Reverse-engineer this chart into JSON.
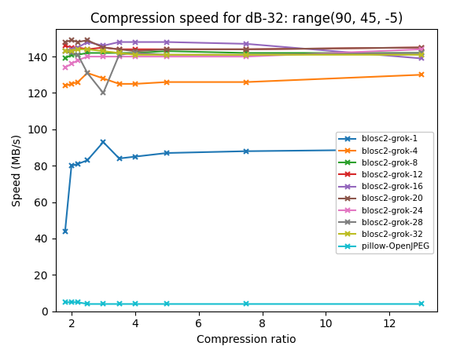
{
  "title": "Compression speed for dB-32: range(90, 45, -5)",
  "xlabel": "Compression ratio",
  "ylabel": "Speed (MB/s)",
  "x_values": [
    1.8,
    2.0,
    2.2,
    2.5,
    3.0,
    3.5,
    4.0,
    5.0,
    7.5,
    13.0
  ],
  "series": {
    "blosc2-grok-1": {
      "color": "#1f77b4",
      "y": [
        44,
        80,
        81,
        83,
        93,
        84,
        85,
        87,
        88,
        89
      ]
    },
    "blosc2-grok-4": {
      "color": "#ff7f0e",
      "y": [
        124,
        125,
        126,
        131,
        128,
        125,
        125,
        126,
        126,
        130
      ]
    },
    "blosc2-grok-8": {
      "color": "#2ca02c",
      "y": [
        139,
        141,
        141,
        142,
        142,
        142,
        142,
        143,
        142,
        142
      ]
    },
    "blosc2-grok-12": {
      "color": "#d62728",
      "y": [
        146,
        145,
        145,
        144,
        145,
        144,
        144,
        144,
        144,
        145
      ]
    },
    "blosc2-grok-16": {
      "color": "#9467bd",
      "y": [
        143,
        144,
        145,
        148,
        146,
        148,
        148,
        148,
        147,
        139
      ]
    },
    "blosc2-grok-20": {
      "color": "#8c564b",
      "y": [
        148,
        149,
        148,
        149,
        145,
        144,
        143,
        144,
        144,
        145
      ]
    },
    "blosc2-grok-24": {
      "color": "#e377c2",
      "y": [
        134,
        136,
        138,
        140,
        140,
        140,
        140,
        140,
        140,
        144
      ]
    },
    "blosc2-grok-28": {
      "color": "#7f7f7f",
      "y": [
        143,
        142,
        141,
        131,
        120,
        141,
        142,
        141,
        141,
        142
      ]
    },
    "blosc2-grok-32": {
      "color": "#bcbd22",
      "y": [
        143,
        143,
        144,
        144,
        143,
        142,
        141,
        141,
        141,
        141
      ]
    },
    "pillow-OpenJPEG": {
      "color": "#17becf",
      "y": [
        5,
        5,
        5,
        4,
        4,
        4,
        4,
        4,
        4,
        4
      ]
    }
  },
  "xlim": [
    1.5,
    13.5
  ],
  "ylim": [
    0,
    155
  ],
  "xticks": [
    2,
    4,
    6,
    8,
    10,
    12
  ],
  "yticks": [
    0,
    20,
    40,
    60,
    80,
    100,
    120,
    140
  ],
  "legend_pos": "center right",
  "figsize": [
    5.71,
    4.55
  ],
  "dpi": 100
}
